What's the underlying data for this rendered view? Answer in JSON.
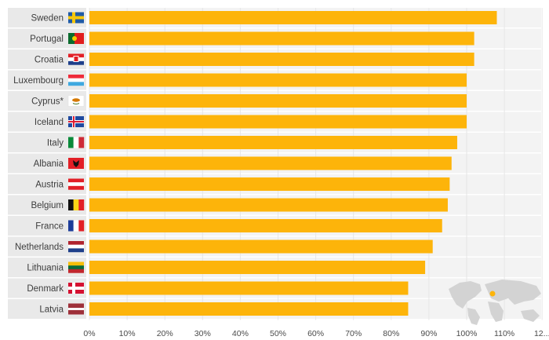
{
  "chart_data": {
    "type": "bar",
    "orientation": "horizontal",
    "categories": [
      "Sweden",
      "Portugal",
      "Croatia",
      "Luxembourg",
      "Cyprus*",
      "Iceland",
      "Italy",
      "Albania",
      "Austria",
      "Belgium",
      "France",
      "Netherlands",
      "Lithuania",
      "Denmark",
      "Latvia"
    ],
    "values": [
      108,
      102,
      102,
      100,
      100,
      100,
      97.5,
      96,
      95.5,
      95,
      93.5,
      91,
      89,
      84.5,
      84.5
    ],
    "value_unit": "%",
    "xlim": [
      0,
      120
    ],
    "x_ticks": [
      "0%",
      "10%",
      "20%",
      "30%",
      "40%",
      "50%",
      "60%",
      "70%",
      "80%",
      "90%",
      "100%",
      "110%",
      "12..."
    ],
    "bar_color": "#fdb40a",
    "grid": true,
    "title": "",
    "xlabel": "",
    "ylabel": ""
  },
  "colors": {
    "bar": "#fdb40a",
    "row_band": "#ececec",
    "grid": "#e6e6e6",
    "label_band": "#e9e9e9"
  },
  "flags": [
    {
      "country": "Sweden",
      "icon": "sweden-flag-icon"
    },
    {
      "country": "Portugal",
      "icon": "portugal-flag-icon"
    },
    {
      "country": "Croatia",
      "icon": "croatia-flag-icon"
    },
    {
      "country": "Luxembourg",
      "icon": "luxembourg-flag-icon"
    },
    {
      "country": "Cyprus*",
      "icon": "cyprus-flag-icon"
    },
    {
      "country": "Iceland",
      "icon": "iceland-flag-icon"
    },
    {
      "country": "Italy",
      "icon": "italy-flag-icon"
    },
    {
      "country": "Albania",
      "icon": "albania-flag-icon"
    },
    {
      "country": "Austria",
      "icon": "austria-flag-icon"
    },
    {
      "country": "Belgium",
      "icon": "belgium-flag-icon"
    },
    {
      "country": "France",
      "icon": "france-flag-icon"
    },
    {
      "country": "Netherlands",
      "icon": "netherlands-flag-icon"
    },
    {
      "country": "Lithuania",
      "icon": "lithuania-flag-icon"
    },
    {
      "country": "Denmark",
      "icon": "denmark-flag-icon"
    },
    {
      "country": "Latvia",
      "icon": "latvia-flag-icon"
    }
  ],
  "decoration": {
    "map_icon": "world-map-icon"
  }
}
